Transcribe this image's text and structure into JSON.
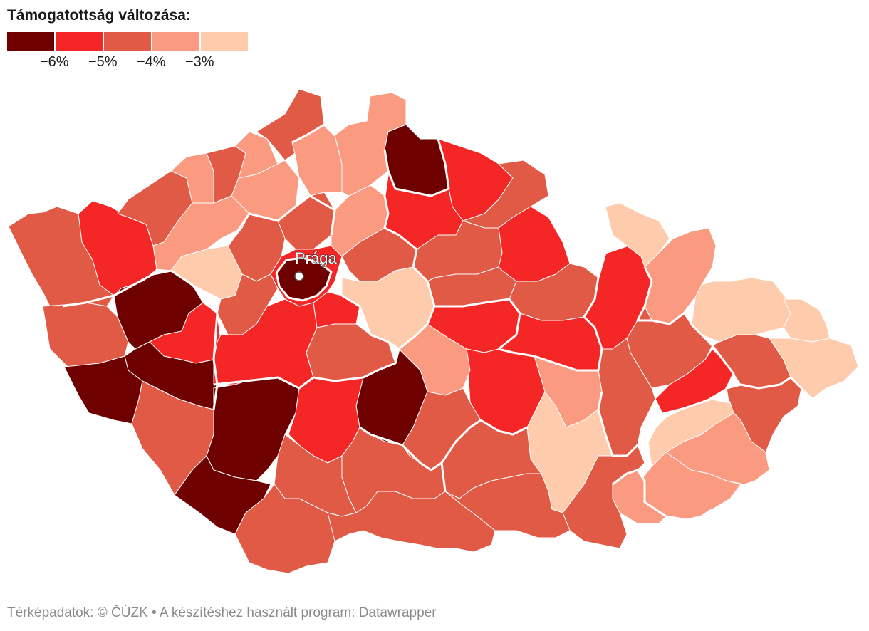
{
  "legend": {
    "title": "Támogatottság változása:",
    "colors": [
      "#6e0000",
      "#f52626",
      "#e05a46",
      "#fa9a80",
      "#fecbad"
    ],
    "ticks": [
      "−6%",
      "−5%",
      "−4%",
      "−3%"
    ]
  },
  "map": {
    "city_label": "Prága",
    "region_colors": {
      "c6": "#6e0000",
      "c5": "#f52626",
      "c4": "#e05a46",
      "c3": "#fa9a80",
      "c2": "#fecbad"
    }
  },
  "footer": {
    "map_source": "Térképadatok: © ČÚZK",
    "tool_credit": "• A készítéshez használt program: Datawrapper"
  }
}
